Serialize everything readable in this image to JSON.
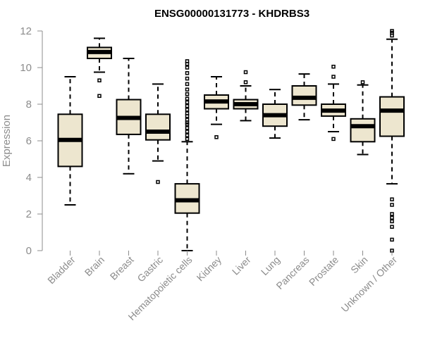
{
  "chart_data": {
    "type": "boxplot",
    "title": "ENSG00000131773 - KHDRBS3",
    "xlabel": "",
    "ylabel": "Expression",
    "ylim": [
      0,
      12
    ],
    "yticks": [
      0,
      2,
      4,
      6,
      8,
      10,
      12
    ],
    "box_color": "#ede6cf",
    "categories": [
      "Bladder",
      "Brain",
      "Breast",
      "Gastric",
      "Hematopoietic cells",
      "Kidney",
      "Liver",
      "Lung",
      "Pancreas",
      "Prostate",
      "Skin",
      "Unknown / Other"
    ],
    "boxes": [
      {
        "min": 2.5,
        "q1": 4.6,
        "median": 6.05,
        "q3": 7.45,
        "max": 9.5,
        "outliers": []
      },
      {
        "min": 9.75,
        "q1": 10.5,
        "median": 10.85,
        "q3": 11.1,
        "max": 11.6,
        "outliers": [
          8.45,
          9.3
        ]
      },
      {
        "min": 4.2,
        "q1": 6.35,
        "median": 7.25,
        "q3": 8.25,
        "max": 10.5,
        "outliers": []
      },
      {
        "min": 4.9,
        "q1": 6.05,
        "median": 6.5,
        "q3": 7.45,
        "max": 9.1,
        "outliers": [
          3.75
        ]
      },
      {
        "min": 0.0,
        "q1": 2.05,
        "median": 2.75,
        "q3": 3.65,
        "max": 5.95,
        "outliers": [
          6.1,
          6.3,
          6.5,
          6.7,
          6.9,
          7.0,
          7.15,
          7.35,
          7.5,
          7.7,
          7.9,
          8.1,
          8.3,
          8.55,
          8.8,
          9.1,
          9.4,
          9.7,
          10.0,
          10.2,
          10.35
        ]
      },
      {
        "min": 6.9,
        "q1": 7.75,
        "median": 8.15,
        "q3": 8.5,
        "max": 9.5,
        "outliers": [
          6.2
        ]
      },
      {
        "min": 7.1,
        "q1": 7.75,
        "median": 8.0,
        "q3": 8.25,
        "max": 9.0,
        "outliers": [
          9.2,
          9.75
        ]
      },
      {
        "min": 6.15,
        "q1": 6.8,
        "median": 7.4,
        "q3": 8.0,
        "max": 8.8,
        "outliers": []
      },
      {
        "min": 7.15,
        "q1": 7.95,
        "median": 8.35,
        "q3": 9.0,
        "max": 9.65,
        "outliers": []
      },
      {
        "min": 6.5,
        "q1": 7.35,
        "median": 7.65,
        "q3": 8.0,
        "max": 9.1,
        "outliers": [
          6.1,
          9.5,
          10.05
        ]
      },
      {
        "min": 5.25,
        "q1": 5.95,
        "median": 6.8,
        "q3": 7.2,
        "max": 9.05,
        "outliers": [
          9.2
        ]
      },
      {
        "min": 3.65,
        "q1": 6.25,
        "median": 7.65,
        "q3": 8.4,
        "max": 11.55,
        "outliers": [
          0.0,
          0.6,
          1.3,
          1.6,
          1.8,
          2.0,
          2.5,
          2.8,
          11.75,
          11.9,
          12.0
        ]
      }
    ]
  }
}
